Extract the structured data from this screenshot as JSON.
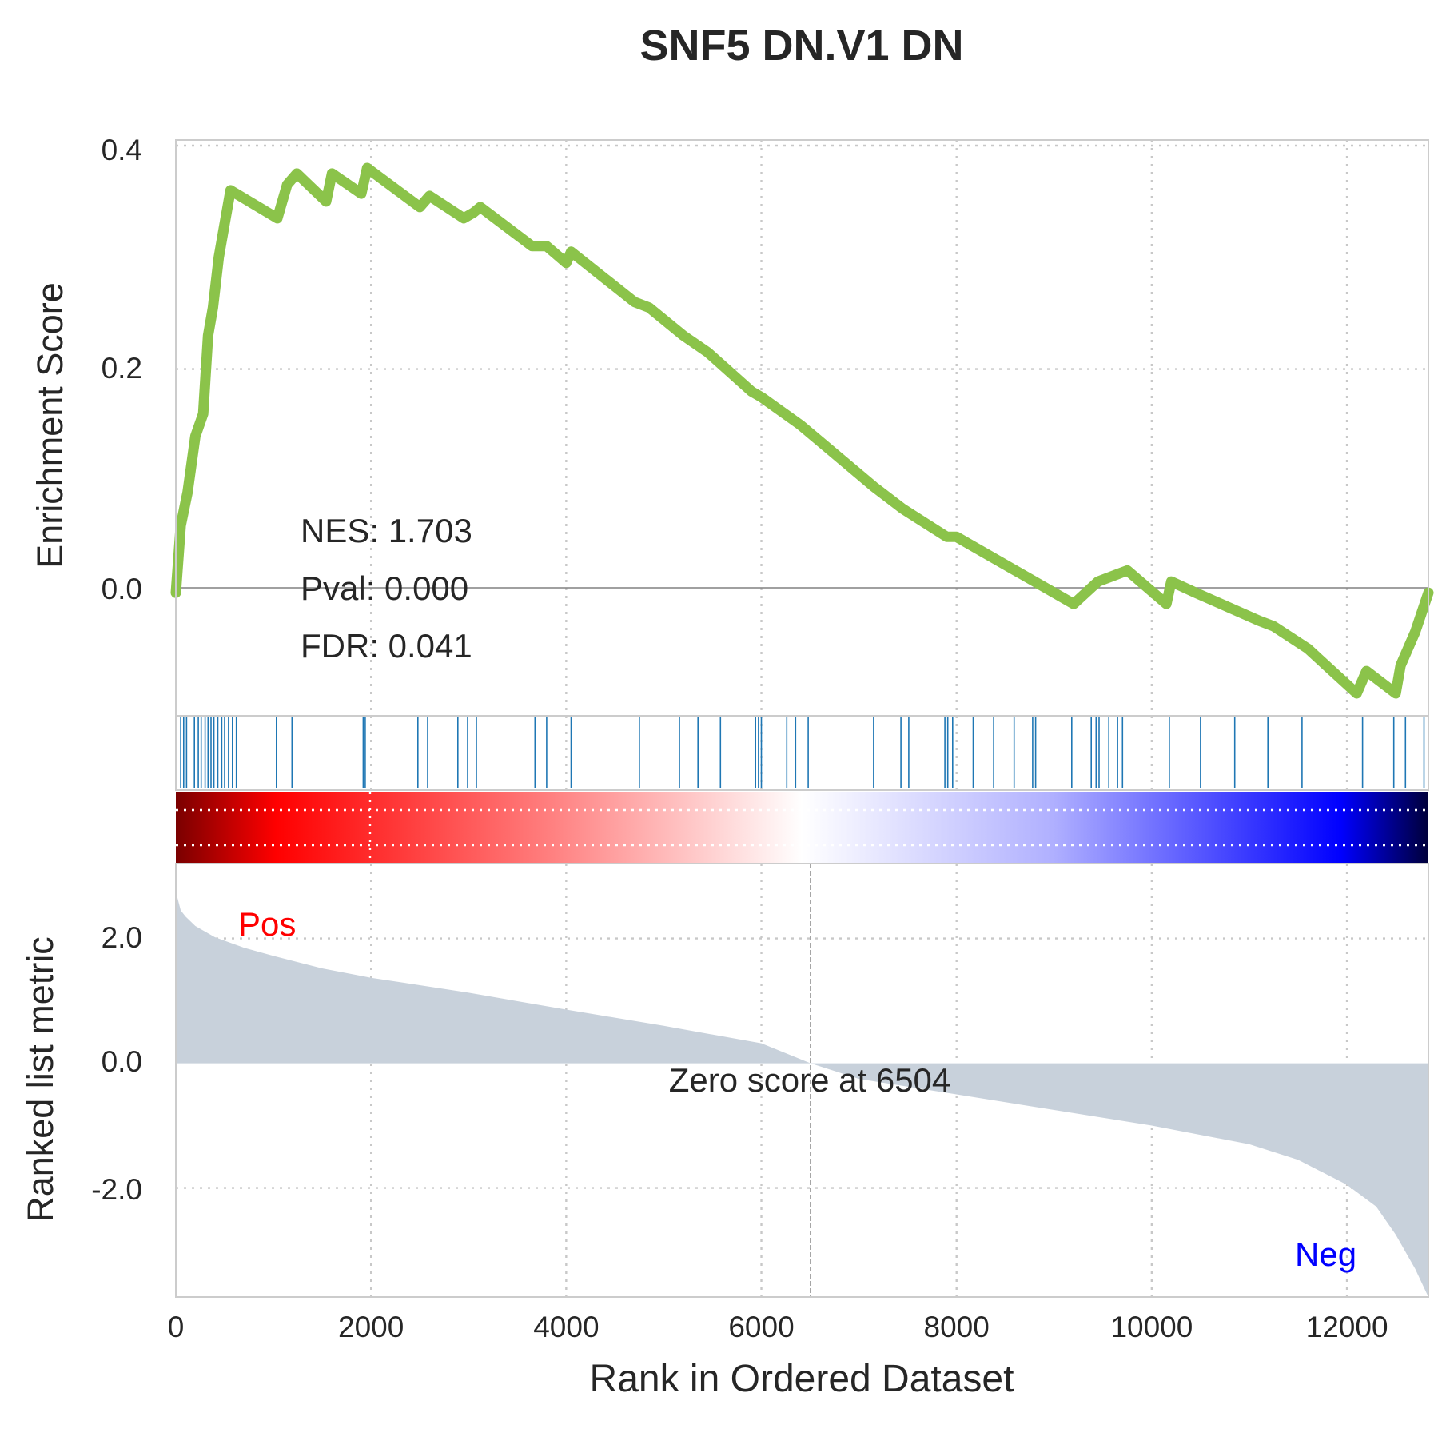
{
  "chart_data": {
    "type": "line",
    "title": "SNF5 DN.V1 DN",
    "xlabel": "Rank in Ordered Dataset",
    "xlim": [
      0,
      12835
    ],
    "x_ticks": [
      "0",
      "2000",
      "4000",
      "6000",
      "8000",
      "10000",
      "12000"
    ],
    "colors": {
      "es_line": "#8bc34a",
      "hits": "#1f77b4",
      "metric_fill": "#c8d1db",
      "pos_label": "#ff0000",
      "neg_label": "#0000ff",
      "title": "#262626"
    },
    "enrichment": {
      "ylabel": "Enrichment Score",
      "ylim": [
        -0.11,
        0.405
      ],
      "y_ticks": [
        "0.4",
        "0.2",
        "0.0"
      ],
      "nes_text": "NES: 1.703",
      "pval_text": "Pval: 0.000",
      "fdr_text": "FDR: 0.041",
      "points": [
        [
          0,
          0.0
        ],
        [
          50,
          0.06
        ],
        [
          120,
          0.09
        ],
        [
          200,
          0.14
        ],
        [
          280,
          0.16
        ],
        [
          330,
          0.23
        ],
        [
          380,
          0.255
        ],
        [
          440,
          0.3
        ],
        [
          500,
          0.33
        ],
        [
          560,
          0.36
        ],
        [
          1040,
          0.335
        ],
        [
          1140,
          0.365
        ],
        [
          1240,
          0.375
        ],
        [
          1540,
          0.35
        ],
        [
          1600,
          0.375
        ],
        [
          1900,
          0.357
        ],
        [
          1960,
          0.38
        ],
        [
          2500,
          0.345
        ],
        [
          2600,
          0.355
        ],
        [
          2950,
          0.335
        ],
        [
          3050,
          0.34
        ],
        [
          3120,
          0.345
        ],
        [
          3650,
          0.31
        ],
        [
          3800,
          0.31
        ],
        [
          4000,
          0.295
        ],
        [
          4050,
          0.305
        ],
        [
          4700,
          0.26
        ],
        [
          4850,
          0.255
        ],
        [
          5200,
          0.23
        ],
        [
          5450,
          0.215
        ],
        [
          5900,
          0.18
        ],
        [
          6000,
          0.175
        ],
        [
          6400,
          0.15
        ],
        [
          7150,
          0.095
        ],
        [
          7450,
          0.075
        ],
        [
          7900,
          0.05
        ],
        [
          8000,
          0.05
        ],
        [
          8600,
          0.02
        ],
        [
          9200,
          -0.01
        ],
        [
          9450,
          0.01
        ],
        [
          9750,
          0.02
        ],
        [
          10150,
          -0.01
        ],
        [
          10200,
          0.01
        ],
        [
          10450,
          0.0
        ],
        [
          11100,
          -0.025
        ],
        [
          11250,
          -0.03
        ],
        [
          11600,
          -0.05
        ],
        [
          12100,
          -0.09
        ],
        [
          12200,
          -0.07
        ],
        [
          12500,
          -0.09
        ],
        [
          12550,
          -0.065
        ],
        [
          12700,
          -0.035
        ],
        [
          12835,
          0.0
        ]
      ]
    },
    "hits": [
      50,
      80,
      110,
      190,
      230,
      260,
      300,
      330,
      360,
      390,
      430,
      470,
      500,
      540,
      580,
      620,
      1030,
      1190,
      1920,
      1940,
      2480,
      2580,
      2890,
      2990,
      3080,
      3680,
      3800,
      4050,
      4750,
      5160,
      5350,
      5580,
      5940,
      5970,
      6000,
      6260,
      6350,
      6480,
      7150,
      7430,
      7510,
      7880,
      7910,
      7960,
      8170,
      8380,
      8590,
      8780,
      8810,
      9180,
      9380,
      9430,
      9460,
      9560,
      9650,
      9700,
      10180,
      10500,
      10850,
      11190,
      11540,
      12160,
      12480,
      12600,
      12790
    ],
    "metric": {
      "ylabel": "Ranked list metric",
      "ylim": [
        -3.75,
        3.2
      ],
      "y_ticks": [
        "2.0",
        "0.0",
        "-2.0"
      ],
      "zero_cross": 6504,
      "zero_text": "Zero score at 6504",
      "pos_label": "Pos",
      "neg_label": "Neg",
      "points": [
        [
          0,
          2.75
        ],
        [
          50,
          2.45
        ],
        [
          100,
          2.35
        ],
        [
          200,
          2.2
        ],
        [
          400,
          2.02
        ],
        [
          700,
          1.85
        ],
        [
          1000,
          1.72
        ],
        [
          1500,
          1.52
        ],
        [
          2000,
          1.37
        ],
        [
          3000,
          1.13
        ],
        [
          4000,
          0.86
        ],
        [
          5000,
          0.6
        ],
        [
          6000,
          0.32
        ],
        [
          6504,
          0.0
        ],
        [
          7000,
          -0.25
        ],
        [
          8000,
          -0.5
        ],
        [
          9000,
          -0.75
        ],
        [
          10000,
          -1.0
        ],
        [
          11000,
          -1.3
        ],
        [
          11500,
          -1.55
        ],
        [
          12000,
          -1.95
        ],
        [
          12300,
          -2.3
        ],
        [
          12500,
          -2.75
        ],
        [
          12700,
          -3.3
        ],
        [
          12835,
          -3.75
        ]
      ]
    }
  }
}
